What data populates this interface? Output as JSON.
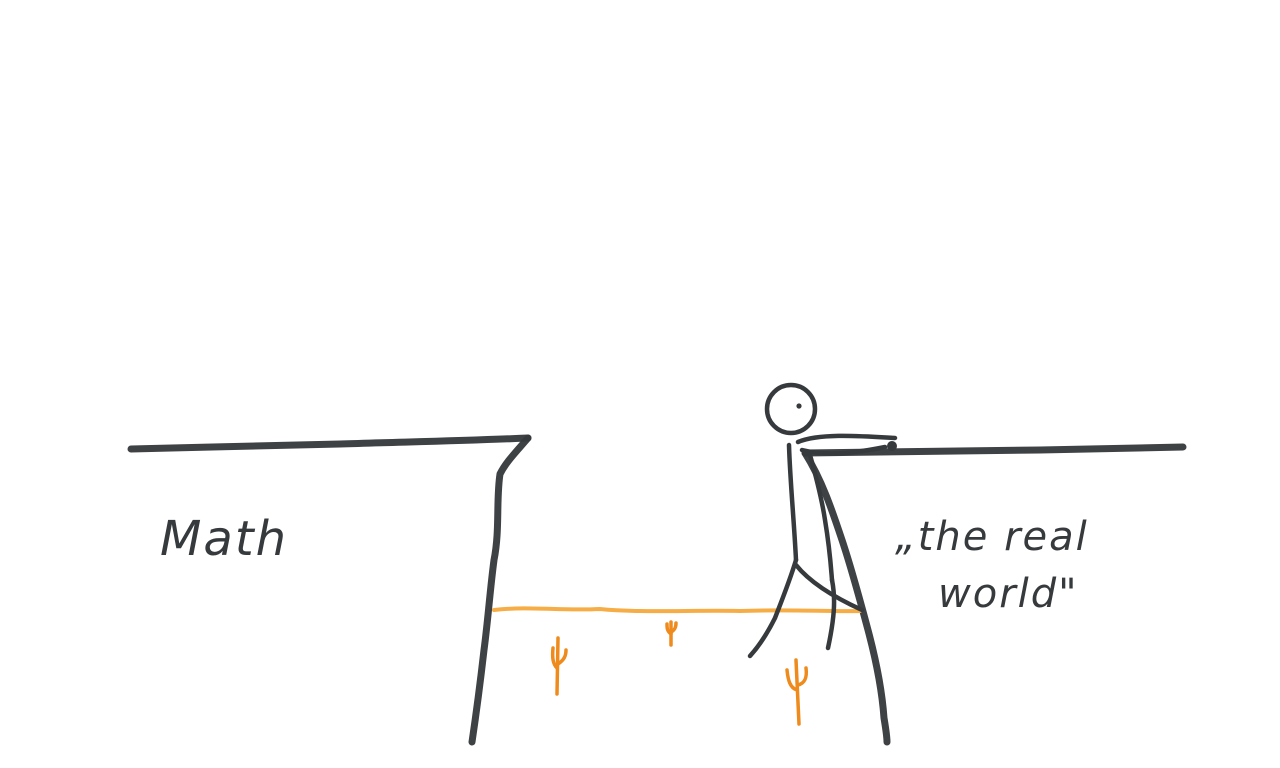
{
  "labels": {
    "left": "Math",
    "right_line1": "„the real",
    "right_line2": "world\""
  },
  "colors": {
    "ink": "#363a3d",
    "desert": "#f7ad45",
    "cactus": "#ef8a1c",
    "background": "#ffffff"
  }
}
